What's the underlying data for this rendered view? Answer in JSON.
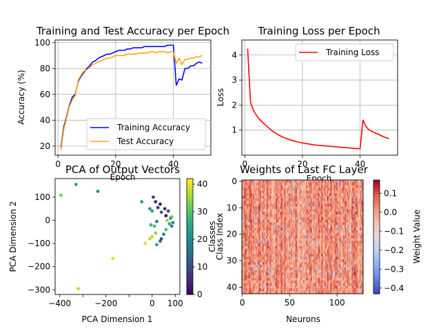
{
  "chart_data": [
    {
      "type": "line",
      "title": "Training and Test Accuracy per Epoch",
      "xlabel": "Epoch",
      "ylabel": "Accuracy (%)",
      "xlim": [
        -1,
        53
      ],
      "ylim": [
        13,
        102
      ],
      "xticks": [
        0,
        20,
        40
      ],
      "yticks": [
        20,
        40,
        60,
        80,
        100
      ],
      "grid": true,
      "legend": "lower-right",
      "x": [
        1,
        2,
        3,
        4,
        5,
        6,
        7,
        8,
        9,
        10,
        11,
        12,
        13,
        14,
        15,
        16,
        17,
        18,
        19,
        20,
        21,
        22,
        23,
        24,
        25,
        26,
        27,
        28,
        29,
        30,
        31,
        32,
        33,
        34,
        35,
        36,
        37,
        38,
        39,
        40,
        41,
        42,
        43,
        44,
        45,
        46,
        47,
        48,
        49,
        50
      ],
      "series": [
        {
          "name": "Training Accuracy",
          "color": "#0000ff",
          "values": [
            19,
            35,
            43,
            52,
            58,
            60,
            70,
            74,
            77,
            80,
            82,
            85,
            86,
            88,
            89,
            90,
            91,
            91,
            92,
            93,
            94,
            94,
            94,
            95,
            95,
            96,
            96,
            96,
            96,
            97,
            97,
            97,
            97,
            97,
            97,
            97,
            97,
            98,
            98,
            98,
            67,
            72,
            71,
            80,
            80,
            82,
            82,
            84,
            85,
            84
          ]
        },
        {
          "name": "Test Accuracy",
          "color": "#ffa500",
          "values": [
            17,
            33,
            42,
            51,
            56,
            59,
            71,
            75,
            78,
            79,
            81,
            83,
            84,
            85,
            86,
            87,
            88,
            88,
            89,
            90,
            90,
            90,
            90,
            91,
            91,
            91,
            91,
            92,
            92,
            92,
            92,
            93,
            93,
            92,
            93,
            93,
            93,
            92,
            93,
            93,
            84,
            88,
            83,
            87,
            87,
            88,
            88,
            89,
            89,
            90
          ]
        }
      ]
    },
    {
      "type": "line",
      "title": "Training Loss per Epoch",
      "xlabel": "Epoch",
      "ylabel": "Loss",
      "xlim": [
        -1,
        53
      ],
      "ylim": [
        0.0,
        4.6
      ],
      "xticks": [
        0,
        20,
        40
      ],
      "yticks": [
        1,
        2,
        3,
        4
      ],
      "grid": true,
      "legend": "top-right",
      "x": [
        1,
        2,
        3,
        4,
        5,
        6,
        7,
        8,
        9,
        10,
        11,
        12,
        13,
        14,
        15,
        16,
        17,
        18,
        19,
        20,
        21,
        22,
        23,
        24,
        25,
        26,
        27,
        28,
        29,
        30,
        31,
        32,
        33,
        34,
        35,
        36,
        37,
        38,
        39,
        40,
        41,
        42,
        43,
        44,
        45,
        46,
        47,
        48,
        49,
        50
      ],
      "series": [
        {
          "name": "Training Loss",
          "color": "#ff0000",
          "values": [
            4.25,
            2.1,
            1.8,
            1.6,
            1.45,
            1.33,
            1.22,
            1.12,
            1.02,
            0.93,
            0.86,
            0.79,
            0.73,
            0.68,
            0.64,
            0.6,
            0.57,
            0.54,
            0.51,
            0.49,
            0.47,
            0.45,
            0.43,
            0.41,
            0.4,
            0.39,
            0.38,
            0.37,
            0.36,
            0.35,
            0.34,
            0.33,
            0.32,
            0.31,
            0.3,
            0.29,
            0.28,
            0.27,
            0.26,
            0.26,
            1.4,
            1.15,
            1.02,
            0.95,
            0.9,
            0.85,
            0.8,
            0.74,
            0.7,
            0.66
          ]
        }
      ]
    },
    {
      "type": "scatter",
      "title": "PCA of Output Vectors",
      "xlabel": "PCA Dimension 1",
      "ylabel": "PCA Dimension 2",
      "xlim": [
        -420,
        120
      ],
      "ylim": [
        -320,
        180
      ],
      "xticks": [
        -400,
        -300,
        -200,
        -100,
        0,
        100
      ],
      "yticks": [
        -300,
        -200,
        -100,
        0,
        100
      ],
      "colorbar": {
        "min": 0,
        "max": 42,
        "ticks": [
          0,
          10,
          20,
          30,
          40
        ],
        "colormap": "viridis"
      },
      "points": [
        {
          "x": -395,
          "y": 108,
          "c": 33
        },
        {
          "x": -330,
          "y": 155,
          "c": 24
        },
        {
          "x": -235,
          "y": 125,
          "c": 20
        },
        {
          "x": -320,
          "y": -295,
          "c": 38
        },
        {
          "x": -170,
          "y": -165,
          "c": 40
        },
        {
          "x": -45,
          "y": 80,
          "c": 22
        },
        {
          "x": -10,
          "y": 50,
          "c": 22
        },
        {
          "x": 0,
          "y": 40,
          "c": 25
        },
        {
          "x": 5,
          "y": 100,
          "c": 8
        },
        {
          "x": 15,
          "y": 80,
          "c": 4
        },
        {
          "x": 25,
          "y": 55,
          "c": 6
        },
        {
          "x": 35,
          "y": 70,
          "c": 3
        },
        {
          "x": 40,
          "y": 35,
          "c": 12
        },
        {
          "x": 55,
          "y": 50,
          "c": 5
        },
        {
          "x": 60,
          "y": 20,
          "c": 2
        },
        {
          "x": 65,
          "y": 0,
          "c": 36
        },
        {
          "x": 70,
          "y": 40,
          "c": 10
        },
        {
          "x": 75,
          "y": -15,
          "c": 26
        },
        {
          "x": 80,
          "y": 10,
          "c": 15
        },
        {
          "x": 85,
          "y": -25,
          "c": 18
        },
        {
          "x": 60,
          "y": -40,
          "c": 30
        },
        {
          "x": 50,
          "y": -60,
          "c": 20
        },
        {
          "x": 20,
          "y": -5,
          "c": 16
        },
        {
          "x": 10,
          "y": -25,
          "c": 30
        },
        {
          "x": -5,
          "y": -20,
          "c": 28
        },
        {
          "x": 15,
          "y": -55,
          "c": 34
        },
        {
          "x": 0,
          "y": -70,
          "c": 38
        },
        {
          "x": -10,
          "y": -80,
          "c": 37
        },
        {
          "x": -30,
          "y": -100,
          "c": 40
        },
        {
          "x": 20,
          "y": -105,
          "c": 24
        },
        {
          "x": 35,
          "y": -90,
          "c": 14
        },
        {
          "x": 40,
          "y": -80,
          "c": 10
        },
        {
          "x": 90,
          "y": -10,
          "c": 21
        },
        {
          "x": 85,
          "y": 15,
          "c": 32
        }
      ]
    },
    {
      "type": "heatmap",
      "title": "Weights of Last FC Layer",
      "xlabel": "Neurons",
      "ylabel": "Classes",
      "ylabel2": "Class Index",
      "xticks": [
        0,
        50,
        100
      ],
      "yticks": [
        0,
        10,
        20,
        30,
        40
      ],
      "rows": 43,
      "cols": 128,
      "colorbar": {
        "label": "Weight Value",
        "min": -0.43,
        "max": 0.17,
        "ticks": [
          0.1,
          0.0,
          -0.1,
          -0.2,
          -0.3,
          -0.4
        ],
        "colormap": "coolwarm"
      }
    }
  ]
}
